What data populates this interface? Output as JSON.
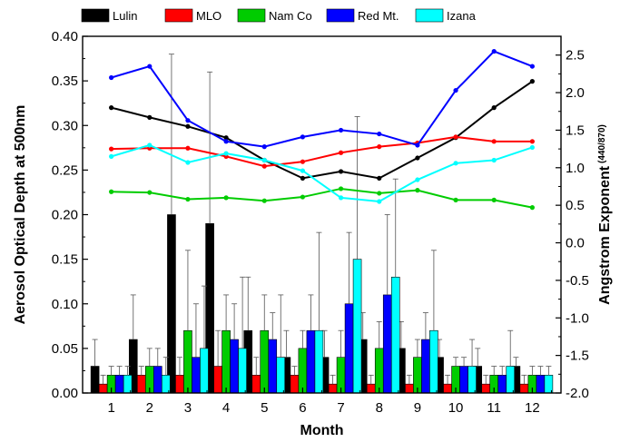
{
  "chart_data": {
    "type": "bar",
    "categories": [
      "1",
      "2",
      "3",
      "4",
      "5",
      "6",
      "7",
      "8",
      "9",
      "10",
      "11",
      "12"
    ],
    "xlabel": "Month",
    "ylabel": "Aerosol Optical Depth at 500nm",
    "ylabel_right": "Angstrom Exponent",
    "ylabel_right_sub": "(440/870)",
    "ylim": [
      0,
      0.4
    ],
    "ylim_right": [
      -2.0,
      2.75
    ],
    "yticks": [
      "0.00",
      "0.05",
      "0.10",
      "0.15",
      "0.20",
      "0.25",
      "0.30",
      "0.35",
      "0.40"
    ],
    "yticks_right": [
      "-2.0",
      "-1.5",
      "-1.0",
      "-0.5",
      "0.0",
      "0.5",
      "1.0",
      "1.5",
      "2.0",
      "2.5"
    ],
    "legend_position": "top",
    "grid": false,
    "series": [
      {
        "name": "Lulin",
        "color": "#000000",
        "aod": [
          0.03,
          0.06,
          0.2,
          0.19,
          0.07,
          0.04,
          0.04,
          0.06,
          0.05,
          0.04,
          0.03,
          0.03
        ],
        "aod_err": [
          0.03,
          0.05,
          0.18,
          0.17,
          0.06,
          0.03,
          0.03,
          0.03,
          0.03,
          0.02,
          0.02,
          0.01
        ],
        "angstrom": [
          1.8,
          1.67,
          1.55,
          1.4,
          1.1,
          0.86,
          0.95,
          0.86,
          1.13,
          1.4,
          1.8,
          2.15
        ]
      },
      {
        "name": "MLO",
        "color": "#ff0000",
        "aod": [
          0.01,
          0.02,
          0.02,
          0.03,
          0.02,
          0.02,
          0.01,
          0.01,
          0.01,
          0.01,
          0.01,
          0.01
        ],
        "aod_err": [
          0.01,
          0.01,
          0.02,
          0.04,
          0.02,
          0.01,
          0.01,
          0.01,
          0.01,
          0.01,
          0.01,
          0.01
        ],
        "angstrom": [
          1.25,
          1.26,
          1.26,
          1.15,
          1.02,
          1.08,
          1.2,
          1.28,
          1.33,
          1.41,
          1.35,
          1.35
        ]
      },
      {
        "name": "Nam Co",
        "color": "#00cc00",
        "aod": [
          0.02,
          0.03,
          0.07,
          0.07,
          0.07,
          0.05,
          0.04,
          0.05,
          0.04,
          0.03,
          0.02,
          0.02
        ],
        "aod_err": [
          0.01,
          0.02,
          0.09,
          0.04,
          0.04,
          0.02,
          0.03,
          0.03,
          0.02,
          0.01,
          0.01,
          0.01
        ],
        "angstrom": [
          0.68,
          0.67,
          0.58,
          0.6,
          0.56,
          0.61,
          0.72,
          0.66,
          0.7,
          0.57,
          0.57,
          0.47
        ]
      },
      {
        "name": "Red Mt.",
        "color": "#0000ff",
        "aod": [
          0.02,
          0.03,
          0.04,
          0.06,
          0.06,
          0.07,
          0.1,
          0.11,
          0.06,
          0.03,
          0.02,
          0.02
        ],
        "aod_err": [
          0.01,
          0.02,
          0.06,
          0.04,
          0.03,
          0.04,
          0.08,
          0.09,
          0.03,
          0.01,
          0.01,
          0.01
        ],
        "angstrom": [
          2.2,
          2.35,
          1.63,
          1.35,
          1.28,
          1.41,
          1.5,
          1.45,
          1.3,
          2.03,
          2.55,
          2.35
        ]
      },
      {
        "name": "Izana",
        "color": "#00ffff",
        "aod": [
          0.02,
          0.02,
          0.05,
          0.05,
          0.04,
          0.07,
          0.15,
          0.13,
          0.07,
          0.03,
          0.03,
          0.02
        ],
        "aod_err": [
          0.01,
          0.02,
          0.07,
          0.08,
          0.07,
          0.11,
          0.16,
          0.11,
          0.09,
          0.03,
          0.04,
          0.01
        ],
        "angstrom": [
          1.15,
          1.3,
          1.07,
          1.19,
          1.1,
          0.96,
          0.6,
          0.55,
          0.84,
          1.06,
          1.1,
          1.27
        ]
      }
    ]
  }
}
